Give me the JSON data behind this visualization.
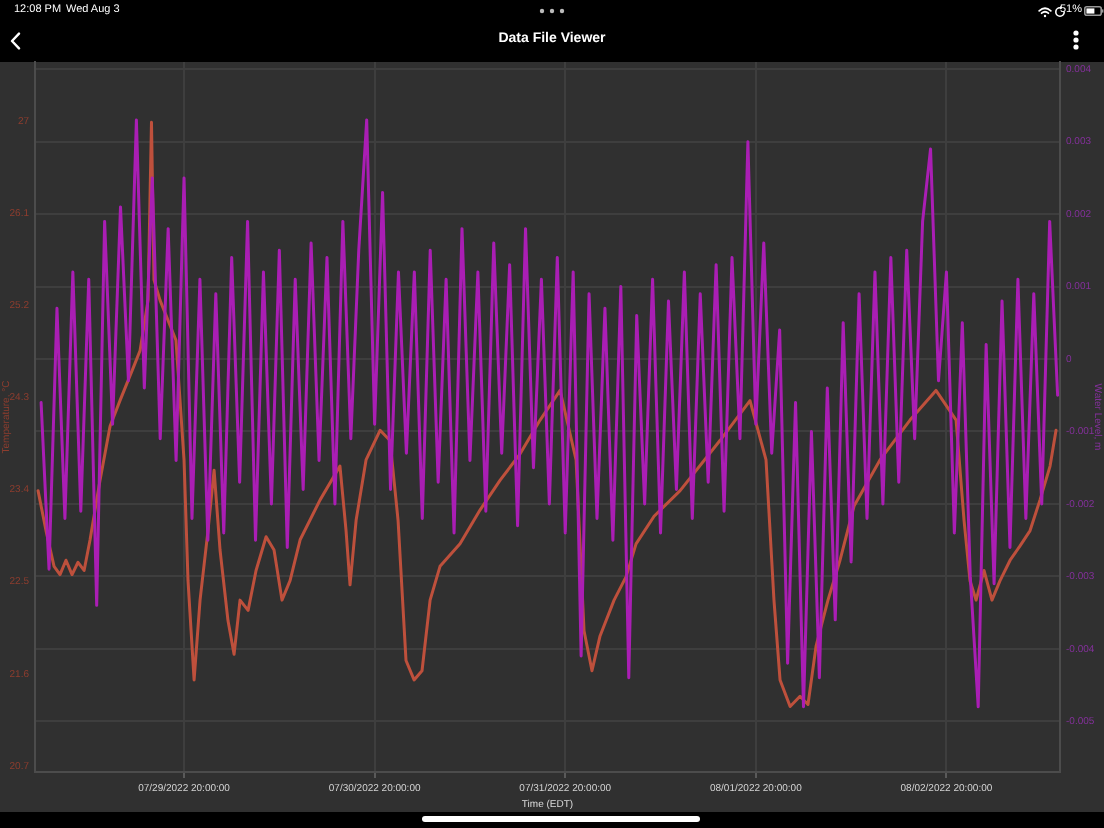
{
  "chart_data": {
    "type": "line",
    "title": "Data File Viewer",
    "xlabel": "Time (EDT)",
    "ylabel": "Temperature, °C",
    "y2label": "Water Level, m",
    "annotations": [
      "12:08 PM",
      "Wed Aug 3",
      "51%"
    ],
    "xlim": [
      "2022-07-29T01:14",
      "2022-08-03T10:18"
    ],
    "xticks": [
      {
        "value": "2022-07-29T20:00",
        "label": "07/29/2022 20:00:00"
      },
      {
        "value": "2022-07-30T20:00",
        "label": "07/30/2022 20:00:00"
      },
      {
        "value": "2022-07-31T20:00",
        "label": "07/31/2022 20:00:00"
      },
      {
        "value": "2022-08-01T20:00",
        "label": "08/01/2022 20:00:00"
      },
      {
        "value": "2022-08-02T20:00",
        "label": "08/02/2022 20:00:00"
      }
    ],
    "ylim": [
      20.64,
      27.58
    ],
    "yticks": [
      20.7,
      21.6,
      22.5,
      23.4,
      24.3,
      25.2,
      26.1,
      27
    ],
    "y2lim": [
      -0.0057,
      0.0041
    ],
    "y2ticks": [
      -0.005,
      -0.004,
      -0.003,
      -0.002,
      -0.001,
      0,
      0.001,
      0.002,
      0.003,
      0.004
    ],
    "grid": true,
    "marker": "none",
    "series": [
      {
        "color": "#be503c",
        "x": [
          "2022-07-29T01:37",
          "2022-07-29T02:37",
          "2022-07-29T03:38",
          "2022-07-29T04:23",
          "2022-07-29T05:08",
          "2022-07-29T05:54",
          "2022-07-29T06:39",
          "2022-07-29T07:25",
          "2022-07-29T08:10",
          "2022-07-29T09:25",
          "2022-07-29T10:41",
          "2022-07-29T11:56",
          "2022-07-29T13:42",
          "2022-07-29T14:28",
          "2022-07-29T15:28",
          "2022-07-29T15:54",
          "2022-07-29T16:13",
          "2022-07-29T16:59",
          "2022-07-29T18:59",
          "2022-07-29T20:00",
          "2022-07-29T20:30",
          "2022-07-29T21:16",
          "2022-07-29T22:01",
          "2022-07-29T23:01",
          "2022-07-29T23:47",
          "2022-07-30T00:32",
          "2022-07-30T01:32",
          "2022-07-30T02:18",
          "2022-07-30T03:03",
          "2022-07-30T04:04",
          "2022-07-30T05:04",
          "2022-07-30T06:20",
          "2022-07-30T07:20",
          "2022-07-30T08:20",
          "2022-07-30T09:21",
          "2022-07-30T10:37",
          "2022-07-30T13:08",
          "2022-07-30T15:38",
          "2022-07-30T16:24",
          "2022-07-30T16:54",
          "2022-07-30T17:40",
          "2022-07-30T18:55",
          "2022-07-30T20:41",
          "2022-07-30T21:56",
          "2022-07-30T22:57",
          "2022-07-30T23:57",
          "2022-07-31T00:58",
          "2022-07-31T01:58",
          "2022-07-31T02:59",
          "2022-07-31T04:14",
          "2022-07-31T06:45",
          "2022-07-31T09:16",
          "2022-07-31T11:47",
          "2022-07-31T14:19",
          "2022-07-31T16:50",
          "2022-07-31T19:21",
          "2022-07-31T21:22",
          "2022-07-31T22:22",
          "2022-07-31T23:22",
          "2022-08-01T00:23",
          "2022-08-01T02:09",
          "2022-08-01T03:40",
          "2022-08-01T04:55",
          "2022-08-01T07:11",
          "2022-08-01T10:28",
          "2022-08-01T15:29",
          "2022-08-01T19:16",
          "2022-08-01T21:17",
          "2022-08-01T22:17",
          "2022-08-01T23:03",
          "2022-08-02T00:19",
          "2022-08-02T01:34",
          "2022-08-02T02:34",
          "2022-08-02T03:35",
          "2022-08-02T05:05",
          "2022-08-02T06:36",
          "2022-08-02T08:22",
          "2022-08-02T11:38",
          "2022-08-02T15:25",
          "2022-08-02T18:41",
          "2022-08-02T21:13",
          "2022-08-02T22:13",
          "2022-08-02T22:58",
          "2022-08-02T23:44",
          "2022-08-03T00:44",
          "2022-08-03T01:44",
          "2022-08-03T02:45",
          "2022-08-03T04:01",
          "2022-08-03T05:16",
          "2022-08-03T06:32",
          "2022-08-03T07:47",
          "2022-08-03T09:03",
          "2022-08-03T09:48"
        ],
        "values": [
          23.39,
          23.0,
          22.65,
          22.57,
          22.71,
          22.57,
          22.69,
          22.61,
          22.91,
          23.49,
          24.02,
          24.27,
          24.61,
          24.76,
          25.25,
          26.99,
          25.45,
          25.25,
          24.86,
          23.69,
          22.51,
          21.54,
          22.32,
          23.0,
          23.59,
          22.81,
          22.12,
          21.79,
          22.32,
          22.22,
          22.61,
          22.94,
          22.81,
          22.32,
          22.51,
          22.91,
          23.3,
          23.63,
          23.0,
          22.47,
          23.1,
          23.69,
          23.98,
          23.88,
          23.1,
          21.73,
          21.54,
          21.63,
          22.32,
          22.65,
          22.87,
          23.2,
          23.49,
          23.75,
          24.08,
          24.37,
          23.69,
          22.02,
          21.63,
          21.97,
          22.32,
          22.55,
          22.87,
          23.14,
          23.39,
          23.88,
          24.27,
          23.69,
          22.32,
          21.54,
          21.28,
          21.38,
          21.3,
          21.87,
          22.32,
          22.71,
          23.24,
          23.69,
          24.08,
          24.37,
          24.08,
          23.1,
          22.51,
          22.32,
          22.61,
          22.32,
          22.51,
          22.71,
          22.85,
          23.0,
          23.3,
          23.63,
          23.98
        ]
      },
      {
        "color": "#aa1eb4",
        "axis": "y2",
        "x": [
          "2022-07-29T02:00",
          "2022-07-29T03:00",
          "2022-07-29T04:00",
          "2022-07-29T05:00",
          "2022-07-29T06:00",
          "2022-07-29T07:00",
          "2022-07-29T08:00",
          "2022-07-29T09:00",
          "2022-07-29T10:00",
          "2022-07-29T11:00",
          "2022-07-29T12:00",
          "2022-07-29T13:00",
          "2022-07-29T14:00",
          "2022-07-29T15:00",
          "2022-07-29T16:00",
          "2022-07-29T17:00",
          "2022-07-29T18:00",
          "2022-07-29T19:00",
          "2022-07-29T20:00",
          "2022-07-29T21:00",
          "2022-07-29T22:00",
          "2022-07-29T23:00",
          "2022-07-30T00:00",
          "2022-07-30T01:00",
          "2022-07-30T02:00",
          "2022-07-30T03:00",
          "2022-07-30T04:00",
          "2022-07-30T05:00",
          "2022-07-30T06:00",
          "2022-07-30T07:00",
          "2022-07-30T08:00",
          "2022-07-30T09:00",
          "2022-07-30T10:00",
          "2022-07-30T11:00",
          "2022-07-30T12:00",
          "2022-07-30T13:00",
          "2022-07-30T14:00",
          "2022-07-30T15:00",
          "2022-07-30T16:00",
          "2022-07-30T17:00",
          "2022-07-30T18:00",
          "2022-07-30T19:00",
          "2022-07-30T20:00",
          "2022-07-30T21:00",
          "2022-07-30T22:00",
          "2022-07-30T23:00",
          "2022-07-31T00:00",
          "2022-07-31T01:00",
          "2022-07-31T02:00",
          "2022-07-31T03:00",
          "2022-07-31T04:00",
          "2022-07-31T05:00",
          "2022-07-31T06:00",
          "2022-07-31T07:00",
          "2022-07-31T08:00",
          "2022-07-31T09:00",
          "2022-07-31T10:00",
          "2022-07-31T11:00",
          "2022-07-31T12:00",
          "2022-07-31T13:00",
          "2022-07-31T14:00",
          "2022-07-31T15:00",
          "2022-07-31T16:00",
          "2022-07-31T17:00",
          "2022-07-31T18:00",
          "2022-07-31T19:00",
          "2022-07-31T20:00",
          "2022-07-31T21:00",
          "2022-07-31T22:00",
          "2022-07-31T23:00",
          "2022-08-01T00:00",
          "2022-08-01T01:00",
          "2022-08-01T02:00",
          "2022-08-01T03:00",
          "2022-08-01T04:00",
          "2022-08-01T05:00",
          "2022-08-01T06:00",
          "2022-08-01T07:00",
          "2022-08-01T08:00",
          "2022-08-01T09:00",
          "2022-08-01T10:00",
          "2022-08-01T11:00",
          "2022-08-01T12:00",
          "2022-08-01T13:00",
          "2022-08-01T14:00",
          "2022-08-01T15:00",
          "2022-08-01T16:00",
          "2022-08-01T17:00",
          "2022-08-01T18:00",
          "2022-08-01T19:00",
          "2022-08-01T20:00",
          "2022-08-01T21:00",
          "2022-08-01T22:00",
          "2022-08-01T23:00",
          "2022-08-02T00:00",
          "2022-08-02T01:00",
          "2022-08-02T02:00",
          "2022-08-02T03:00",
          "2022-08-02T04:00",
          "2022-08-02T05:00",
          "2022-08-02T06:00",
          "2022-08-02T07:00",
          "2022-08-02T08:00",
          "2022-08-02T09:00",
          "2022-08-02T10:00",
          "2022-08-02T11:00",
          "2022-08-02T12:00",
          "2022-08-02T13:00",
          "2022-08-02T14:00",
          "2022-08-02T15:00",
          "2022-08-02T16:00",
          "2022-08-02T17:00",
          "2022-08-02T18:00",
          "2022-08-02T19:00",
          "2022-08-02T20:00",
          "2022-08-02T21:00",
          "2022-08-02T22:00",
          "2022-08-02T23:00",
          "2022-08-03T00:00",
          "2022-08-03T01:00",
          "2022-08-03T02:00",
          "2022-08-03T03:00",
          "2022-08-03T04:00",
          "2022-08-03T05:00",
          "2022-08-03T06:00",
          "2022-08-03T07:00",
          "2022-08-03T08:00",
          "2022-08-03T09:00",
          "2022-08-03T10:00"
        ],
        "values": [
          -0.0006,
          -0.0029,
          0.0007,
          -0.0022,
          0.0012,
          -0.0021,
          0.0011,
          -0.0034,
          0.0019,
          -0.0009,
          0.0021,
          -0.0003,
          0.0033,
          -0.0004,
          0.0025,
          -0.0011,
          0.0018,
          -0.0014,
          0.0025,
          -0.0022,
          0.0011,
          -0.0025,
          0.0009,
          -0.0024,
          0.0014,
          -0.0017,
          0.0019,
          -0.0025,
          0.0012,
          -0.002,
          0.0015,
          -0.0026,
          0.0011,
          -0.0018,
          0.0016,
          -0.0014,
          0.0014,
          -0.002,
          0.0019,
          -0.0011,
          0.0015,
          0.0033,
          -0.0009,
          0.0023,
          -0.0018,
          0.0012,
          -0.0013,
          0.0012,
          -0.0022,
          0.0015,
          -0.0017,
          0.0011,
          -0.0024,
          0.0018,
          -0.0014,
          0.0012,
          -0.0021,
          0.0016,
          -0.0013,
          0.0013,
          -0.0023,
          0.0018,
          -0.0015,
          0.0011,
          -0.002,
          0.0014,
          -0.0024,
          0.0012,
          -0.0041,
          0.0009,
          -0.0022,
          0.0007,
          -0.0025,
          0.001,
          -0.0044,
          0.0006,
          -0.002,
          0.0011,
          -0.0024,
          0.0008,
          -0.0018,
          0.0012,
          -0.0022,
          0.0009,
          -0.0017,
          0.0013,
          -0.0021,
          0.0014,
          -0.0011,
          0.003,
          -0.0009,
          0.0016,
          -0.0013,
          0.0004,
          -0.0042,
          -0.0006,
          -0.0048,
          -0.001,
          -0.0044,
          -0.0004,
          -0.0036,
          0.0005,
          -0.0028,
          0.0009,
          -0.0022,
          0.0012,
          -0.002,
          0.0014,
          -0.0017,
          0.0015,
          -0.0011,
          0.0019,
          0.0029,
          -0.0003,
          0.0012,
          -0.0024,
          0.0005,
          -0.003,
          -0.0048,
          0.0002,
          -0.0031,
          0.0008,
          -0.0026,
          0.0011,
          -0.0022,
          0.0009,
          -0.002,
          0.0019,
          -0.0005
        ]
      }
    ]
  }
}
